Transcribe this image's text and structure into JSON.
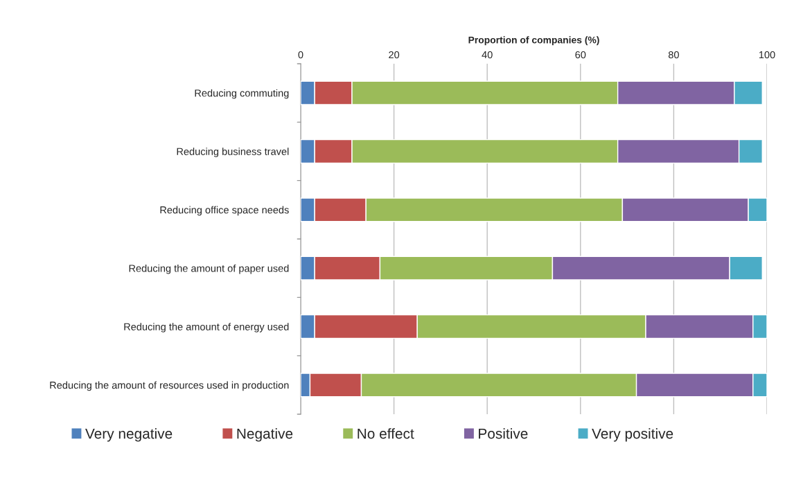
{
  "chart_data": {
    "type": "bar",
    "orientation": "horizontal",
    "stacked": true,
    "xlabel": "Proportion of companies (%)",
    "categories": [
      "Reducing commuting",
      "Reducing business travel",
      "Reducing office space needs",
      "Reducing the amount of paper used",
      "Reducing the amount of energy used",
      "Reducing the amount of resources used in production"
    ],
    "series": [
      {
        "name": "Very negative",
        "color": "#4f81bd",
        "values": [
          3,
          3,
          3,
          3,
          3,
          2
        ]
      },
      {
        "name": "Negative",
        "color": "#c0504d",
        "values": [
          8,
          8,
          11,
          14,
          22,
          11
        ]
      },
      {
        "name": "No effect",
        "color": "#9bbb59",
        "values": [
          57,
          57,
          55,
          37,
          49,
          59
        ]
      },
      {
        "name": "Positive",
        "color": "#8064a2",
        "values": [
          25,
          26,
          27,
          38,
          23,
          25
        ]
      },
      {
        "name": "Very positive",
        "color": "#4bacc6",
        "values": [
          6,
          5,
          4,
          7,
          3,
          3
        ]
      }
    ],
    "xlim": [
      0,
      100
    ],
    "xticks": [
      0,
      20,
      40,
      60,
      80,
      100
    ],
    "grid": "x",
    "legend": "bottom"
  }
}
